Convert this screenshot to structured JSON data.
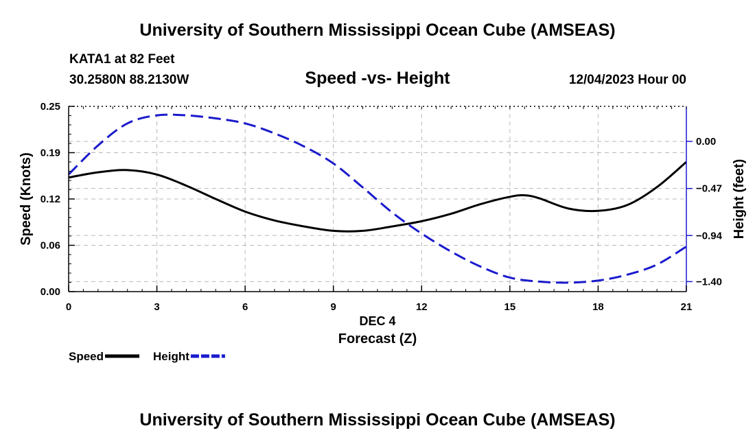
{
  "header": {
    "title": "University of Southern Mississippi Ocean Cube (AMSEAS)",
    "station": "KATA1 at 82 Feet",
    "coords": "30.2580N  88.2130W",
    "subtitle": "Speed -vs- Height",
    "datetime": "12/04/2023 Hour 00"
  },
  "footer": {
    "title": "University of Southern Mississippi Ocean Cube (AMSEAS)"
  },
  "chart_data": {
    "type": "line",
    "title": "Speed -vs- Height",
    "xlabel": "Forecast (Z)",
    "xlabel_date": "DEC 4",
    "ylabel": "Speed (Knots)",
    "y2label": "Height (feet)",
    "xlim": [
      0,
      21
    ],
    "ylim": [
      0,
      0.25
    ],
    "y2lim": [
      -1.5,
      0.35
    ],
    "grid": true,
    "x_ticks": [
      0,
      3,
      6,
      9,
      12,
      15,
      18,
      21
    ],
    "x_tick_labels": [
      "0",
      "3",
      "6",
      "9",
      "12",
      "15",
      "18",
      "21"
    ],
    "y_ticks": [
      0.0,
      0.0625,
      0.125,
      0.1875,
      0.25
    ],
    "y_tick_labels": [
      "0.00",
      "0.06",
      "0.12",
      "0.19",
      "0.25"
    ],
    "y2_ticks": [
      0.0,
      -0.47,
      -0.94,
      -1.4
    ],
    "y2_tick_labels": [
      "0.00",
      "−0.47",
      "−0.94",
      "−1.40"
    ],
    "legend_position": "bottom-left",
    "series": [
      {
        "name": "Speed",
        "axis": "left",
        "color": "#000000",
        "style": "solid",
        "x": [
          0,
          1,
          2,
          3,
          4,
          5,
          6,
          7,
          8,
          9,
          10,
          11,
          12,
          13,
          14,
          15,
          15.5,
          16,
          17,
          18,
          19,
          20,
          21
        ],
        "values": [
          0.154,
          0.161,
          0.164,
          0.158,
          0.143,
          0.125,
          0.108,
          0.096,
          0.088,
          0.082,
          0.082,
          0.088,
          0.095,
          0.105,
          0.118,
          0.128,
          0.13,
          0.126,
          0.112,
          0.109,
          0.117,
          0.141,
          0.175
        ]
      },
      {
        "name": "Height",
        "axis": "right",
        "color": "#1a1acc",
        "style": "dashed",
        "x": [
          0,
          1,
          2,
          3,
          4,
          5,
          6,
          7,
          8,
          9,
          10,
          11,
          12,
          13,
          14,
          15,
          16,
          17,
          18,
          19,
          20,
          21
        ],
        "values": [
          -0.33,
          -0.04,
          0.18,
          0.26,
          0.26,
          0.23,
          0.18,
          0.08,
          -0.05,
          -0.22,
          -0.46,
          -0.71,
          -0.92,
          -1.1,
          -1.25,
          -1.36,
          -1.4,
          -1.41,
          -1.39,
          -1.33,
          -1.23,
          -1.05
        ]
      }
    ]
  }
}
